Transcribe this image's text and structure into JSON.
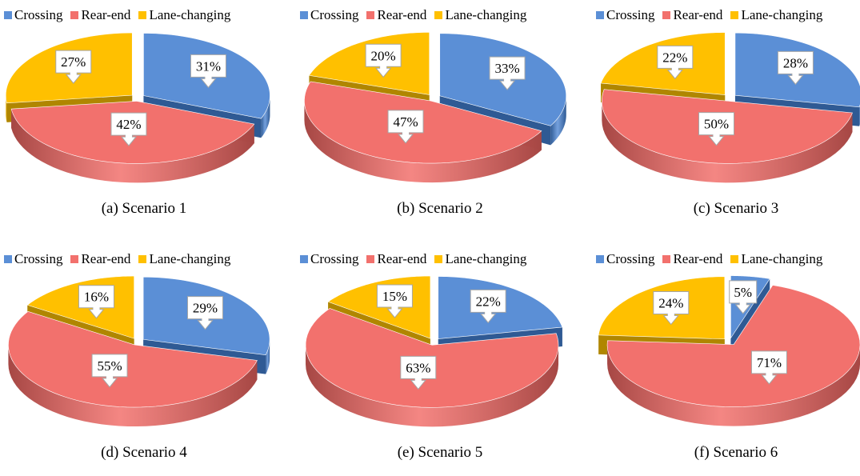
{
  "colors": {
    "Crossing": "#5b8fd6",
    "Rear-end": "#f2716d",
    "Lane-changing": "#ffc000"
  },
  "chart_data": [
    {
      "type": "pie",
      "caption": "(a) Scenario 1",
      "legend": [
        "Crossing",
        "Rear-end",
        "Lane-changing"
      ],
      "legend_position": "top",
      "categories": [
        "Crossing",
        "Rear-end",
        "Lane-changing"
      ],
      "values": [
        31,
        42,
        27
      ],
      "labels": [
        "31%",
        "42%",
        "27%"
      ]
    },
    {
      "type": "pie",
      "caption": "(b) Scenario 2",
      "legend": [
        "Crossing",
        "Rear-end",
        "Lane-changing"
      ],
      "legend_position": "top",
      "categories": [
        "Crossing",
        "Rear-end",
        "Lane-changing"
      ],
      "values": [
        33,
        47,
        20
      ],
      "labels": [
        "33%",
        "47%",
        "20%"
      ]
    },
    {
      "type": "pie",
      "caption": "(c) Scenario 3",
      "legend": [
        "Crossing",
        "Rear-end",
        "Lane-changing"
      ],
      "legend_position": "top",
      "categories": [
        "Crossing",
        "Rear-end",
        "Lane-changing"
      ],
      "values": [
        28,
        50,
        22
      ],
      "labels": [
        "28%",
        "50%",
        "22%"
      ]
    },
    {
      "type": "pie",
      "caption": "(d) Scenario 4",
      "legend": [
        "Crossing",
        "Rear-end",
        "Lane-changing"
      ],
      "legend_position": "top",
      "categories": [
        "Crossing",
        "Rear-end",
        "Lane-changing"
      ],
      "values": [
        29,
        55,
        16
      ],
      "labels": [
        "29%",
        "55%",
        "16%"
      ]
    },
    {
      "type": "pie",
      "caption": "(e) Scenario 5",
      "legend": [
        "Crossing",
        "Rear-end",
        "Lane-changing"
      ],
      "legend_position": "top",
      "categories": [
        "Crossing",
        "Rear-end",
        "Lane-changing"
      ],
      "values": [
        22,
        63,
        15
      ],
      "labels": [
        "22%",
        "63%",
        "15%"
      ]
    },
    {
      "type": "pie",
      "caption": "(f) Scenario 6",
      "legend": [
        "Crossing",
        "Rear-end",
        "Lane-changing"
      ],
      "legend_position": "top",
      "categories": [
        "Crossing",
        "Rear-end",
        "Lane-changing"
      ],
      "values": [
        5,
        71,
        24
      ],
      "labels": [
        "5%",
        "71%",
        "24%"
      ]
    }
  ]
}
